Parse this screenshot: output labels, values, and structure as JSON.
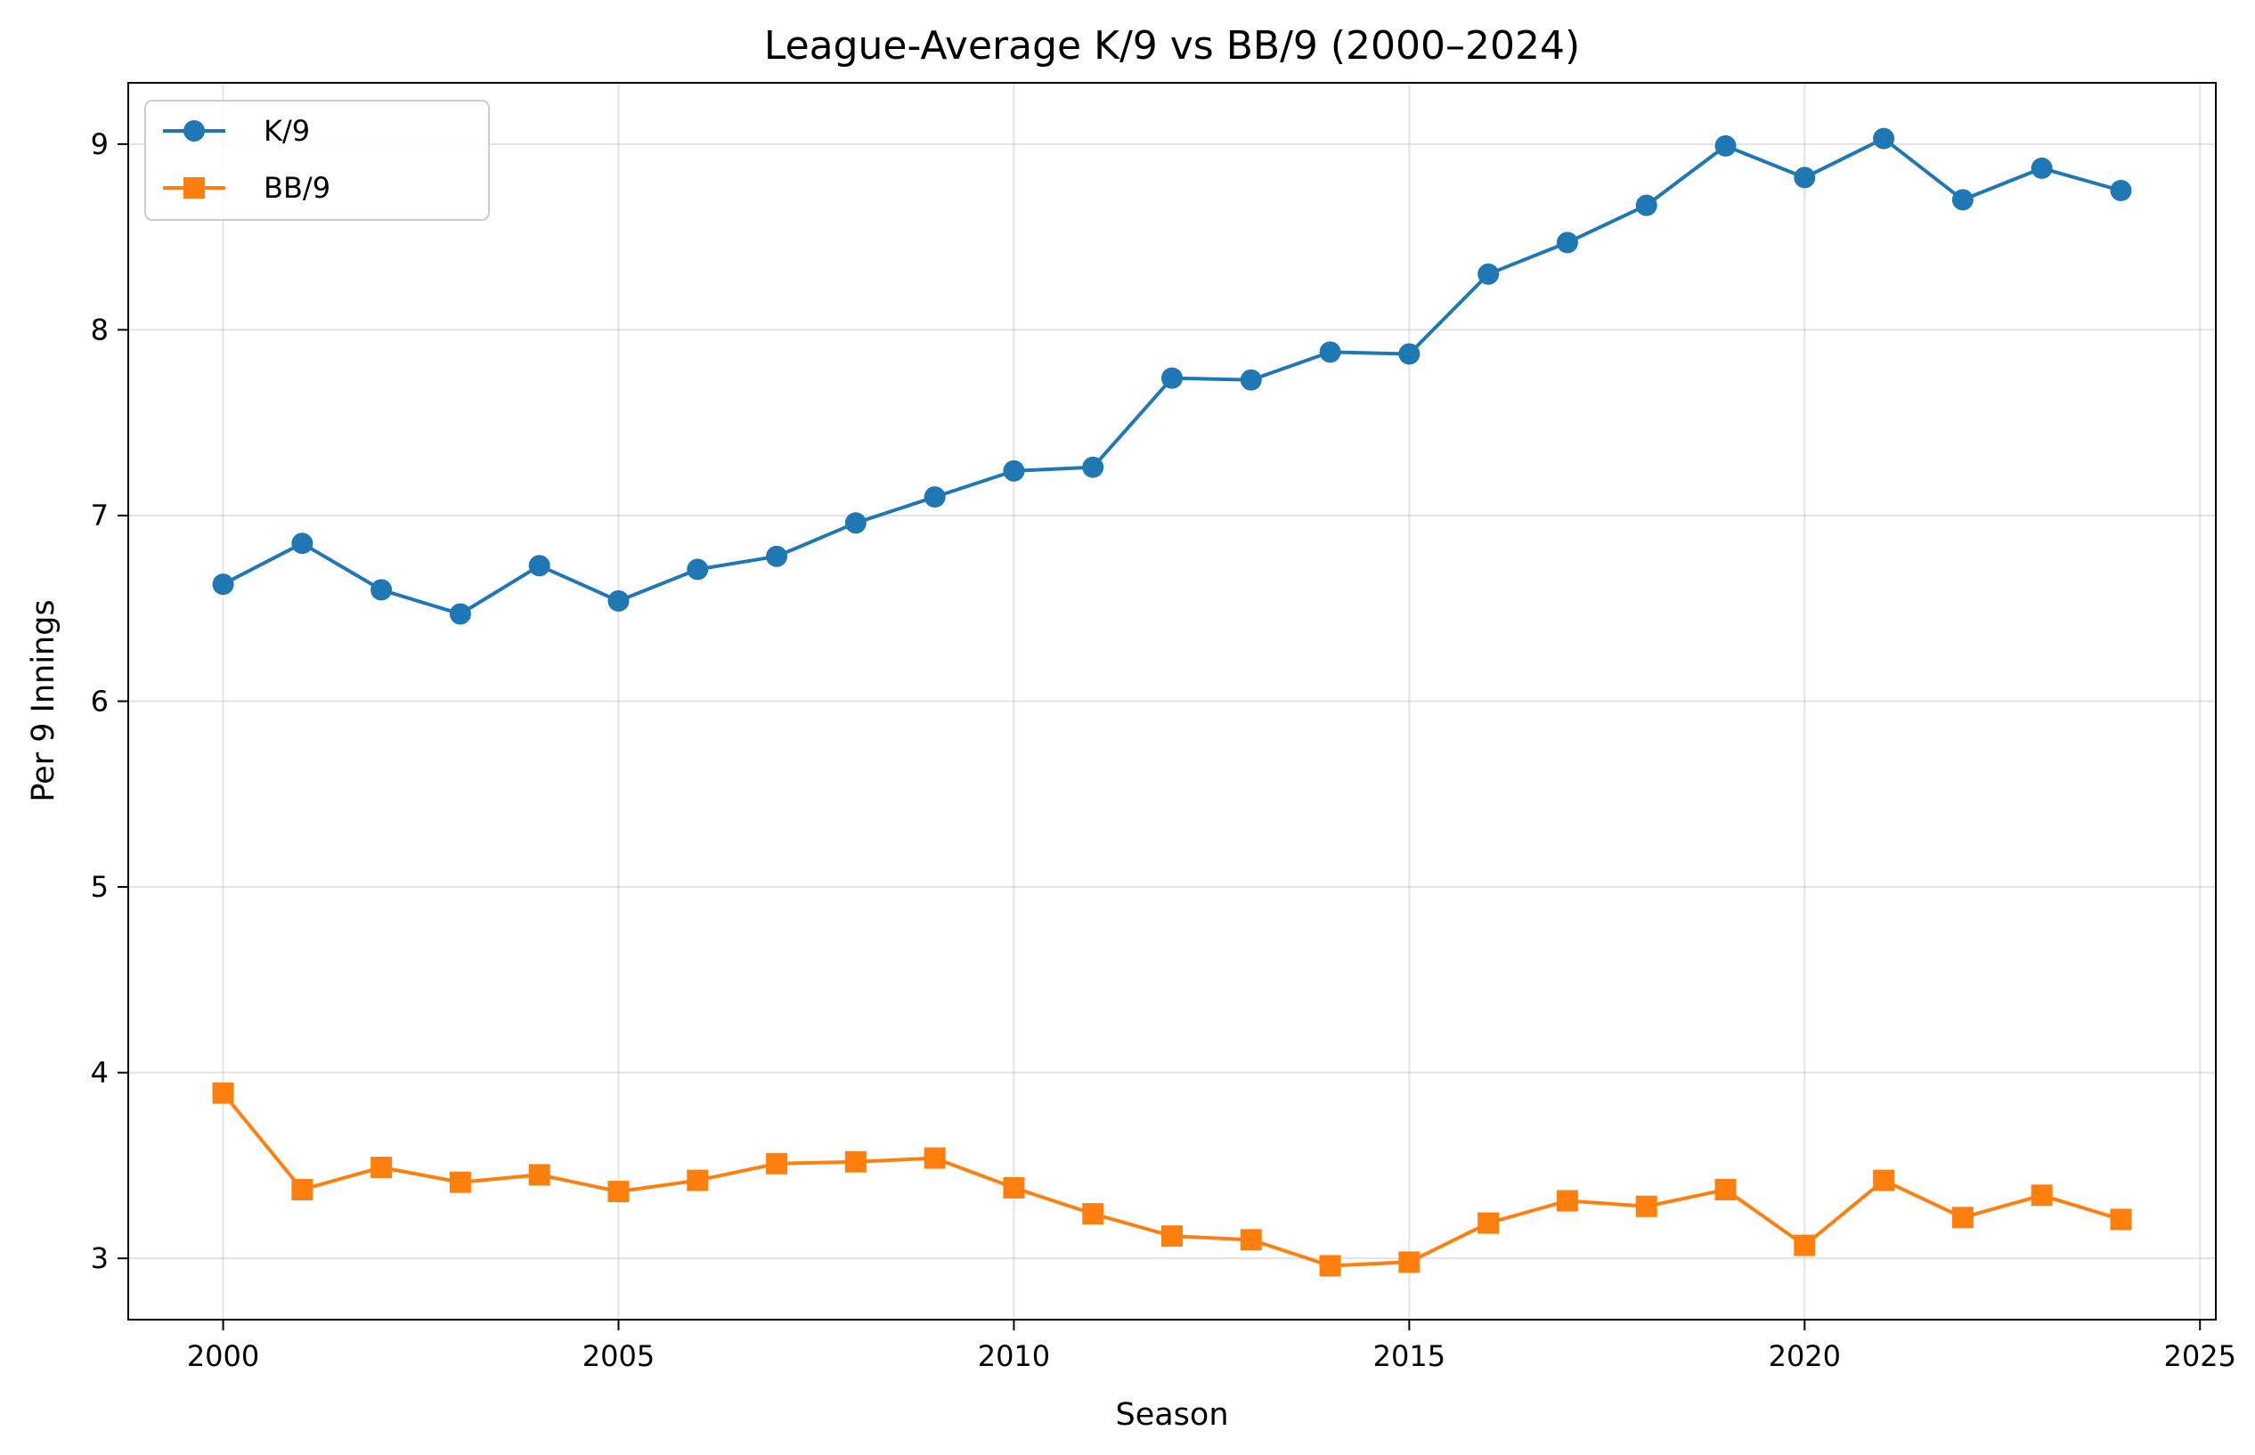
{
  "chart_data": {
    "type": "line",
    "title": "League-Average K/9 vs BB/9 (2000–2024)",
    "xlabel": "Season",
    "ylabel": "Per 9 Innings",
    "xlim": [
      1998.8,
      2025.2
    ],
    "ylim": [
      2.67,
      9.33
    ],
    "xticks": [
      2000,
      2005,
      2010,
      2015,
      2020,
      2025
    ],
    "yticks": [
      3,
      4,
      5,
      6,
      7,
      8,
      9
    ],
    "grid": true,
    "legend_position": "top-left",
    "x": [
      2000,
      2001,
      2002,
      2003,
      2004,
      2005,
      2006,
      2007,
      2008,
      2009,
      2010,
      2011,
      2012,
      2013,
      2014,
      2015,
      2016,
      2017,
      2018,
      2019,
      2020,
      2021,
      2022,
      2023,
      2024
    ],
    "series": [
      {
        "name": "K/9",
        "color": "#1f77b4",
        "marker": "circle",
        "values": [
          6.63,
          6.85,
          6.6,
          6.47,
          6.73,
          6.54,
          6.71,
          6.78,
          6.96,
          7.1,
          7.24,
          7.26,
          7.74,
          7.73,
          7.88,
          7.87,
          8.3,
          8.47,
          8.67,
          8.99,
          8.82,
          9.03,
          8.7,
          8.87,
          8.75
        ]
      },
      {
        "name": "BB/9",
        "color": "#ff7f0e",
        "marker": "square",
        "values": [
          3.89,
          3.37,
          3.49,
          3.41,
          3.45,
          3.36,
          3.42,
          3.51,
          3.52,
          3.54,
          3.38,
          3.24,
          3.12,
          3.1,
          2.96,
          2.98,
          3.19,
          3.31,
          3.28,
          3.37,
          3.07,
          3.42,
          3.22,
          3.34,
          3.21
        ]
      }
    ]
  }
}
